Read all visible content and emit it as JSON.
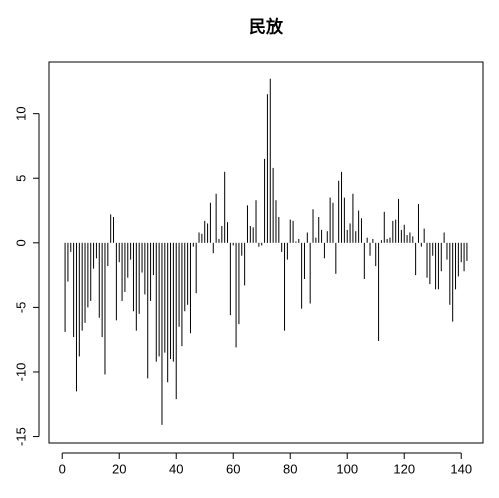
{
  "chart_data": {
    "type": "bar",
    "title": "民放",
    "x": [
      1,
      2,
      3,
      4,
      5,
      6,
      7,
      8,
      9,
      10,
      11,
      12,
      13,
      14,
      15,
      16,
      17,
      18,
      19,
      20,
      21,
      22,
      23,
      24,
      25,
      26,
      27,
      28,
      29,
      30,
      31,
      32,
      33,
      34,
      35,
      36,
      37,
      38,
      39,
      40,
      41,
      42,
      43,
      44,
      45,
      46,
      47,
      48,
      49,
      50,
      51,
      52,
      53,
      54,
      55,
      56,
      57,
      58,
      59,
      60,
      61,
      62,
      63,
      64,
      65,
      66,
      67,
      68,
      69,
      70,
      71,
      72,
      73,
      74,
      75,
      76,
      77,
      78,
      79,
      80,
      81,
      82,
      83,
      84,
      85,
      86,
      87,
      88,
      89,
      90,
      91,
      92,
      93,
      94,
      95,
      96,
      97,
      98,
      99,
      100,
      101,
      102,
      103,
      104,
      105,
      106,
      107,
      108,
      109,
      110,
      111,
      112,
      113,
      114,
      115,
      116,
      117,
      118,
      119,
      120,
      121,
      122,
      123,
      124,
      125,
      126,
      127,
      128,
      129,
      130,
      131,
      132,
      133,
      134,
      135,
      136,
      137,
      138,
      139,
      140,
      141,
      142
    ],
    "values": [
      -6.9,
      -3.0,
      -0.7,
      -7.3,
      -11.5,
      -8.8,
      -6.8,
      -6.2,
      -5.0,
      -4.5,
      -2.0,
      -1.2,
      -5.8,
      -7.3,
      -10.2,
      -1.8,
      2.2,
      2.0,
      -6.0,
      -1.5,
      -4.5,
      -3.8,
      -2.7,
      -1.3,
      -5.3,
      -6.8,
      -5.5,
      -2.3,
      -4.0,
      -10.5,
      -4.5,
      -2.5,
      -9.2,
      -8.8,
      -14.1,
      -8.5,
      -10.8,
      -9.0,
      -9.2,
      -12.1,
      -6.5,
      -8.0,
      -5.3,
      -4.8,
      -7.0,
      -0.3,
      -3.9,
      0.8,
      0.7,
      1.7,
      1.5,
      3.1,
      -0.8,
      3.8,
      0.3,
      1.3,
      5.5,
      1.6,
      -5.6,
      -0.2,
      -8.1,
      -6.3,
      -1.0,
      -3.3,
      2.9,
      1.3,
      1.2,
      3.3,
      -0.3,
      -0.2,
      6.5,
      11.5,
      12.7,
      5.8,
      3.3,
      2.0,
      -0.7,
      -6.8,
      -1.3,
      1.8,
      1.7,
      0.1,
      0.3,
      -5.1,
      -2.8,
      0.8,
      -4.7,
      2.6,
      0.4,
      2.0,
      1.0,
      -1.2,
      0.9,
      3.5,
      3.1,
      -2.4,
      4.8,
      5.5,
      3.5,
      1.0,
      1.5,
      3.8,
      0.9,
      2.5,
      1.9,
      -2.8,
      0.4,
      -1.0,
      0.3,
      -1.8,
      -7.6,
      0.2,
      2.4,
      0.3,
      0.4,
      1.7,
      1.8,
      3.4,
      1.0,
      1.4,
      0.6,
      0.8,
      0.5,
      -2.5,
      3.0,
      -0.3,
      1.1,
      -2.7,
      -3.2,
      -1.0,
      -3.6,
      -3.6,
      -2.2,
      0.8,
      -1.3,
      -4.8,
      -6.1,
      -3.6,
      -2.6,
      -1.5,
      -2.2,
      -1.4
    ],
    "color": "#000000",
    "xlim": [
      -4.64,
      147.64
    ],
    "xticks": [
      0,
      20,
      40,
      60,
      80,
      100,
      120,
      140
    ],
    "ylim": [
      -15.5,
      14
    ],
    "yticks": [
      -15,
      -10,
      -5,
      0,
      5,
      10
    ]
  }
}
